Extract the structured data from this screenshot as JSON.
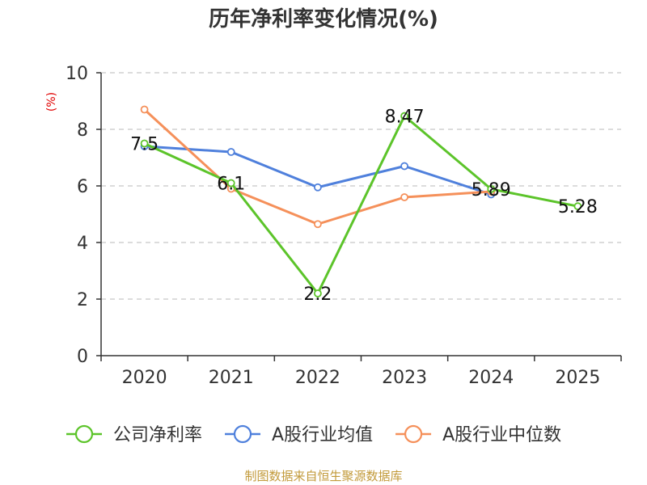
{
  "chart_data": {
    "type": "line",
    "title": "历年净利率变化情况(%)",
    "ylabel": "(%)",
    "ylim": [
      0,
      10
    ],
    "yticks": [
      0,
      2,
      4,
      6,
      8,
      10
    ],
    "categories": [
      "2020",
      "2021",
      "2022",
      "2023",
      "2024",
      "2025"
    ],
    "series": [
      {
        "name": "公司净利率",
        "color": "#5cc42a",
        "values": [
          7.5,
          6.1,
          2.2,
          8.47,
          5.89,
          5.28
        ],
        "labels": [
          "7.5",
          "6.1",
          "2.2",
          "8.47",
          "5.89",
          "5.28"
        ]
      },
      {
        "name": "A股行业均值",
        "color": "#4f80dc",
        "values": [
          7.4,
          7.2,
          5.95,
          6.7,
          5.7,
          null
        ]
      },
      {
        "name": "A股行业中位数",
        "color": "#f5905a",
        "values": [
          8.7,
          5.9,
          4.65,
          5.6,
          5.8,
          null
        ]
      }
    ],
    "grid": true,
    "legend": "bottom"
  },
  "source": "制图数据来自恒生聚源数据库",
  "colors": {
    "source_text": "#c29a3a",
    "ylabel_text": "#e00000"
  }
}
